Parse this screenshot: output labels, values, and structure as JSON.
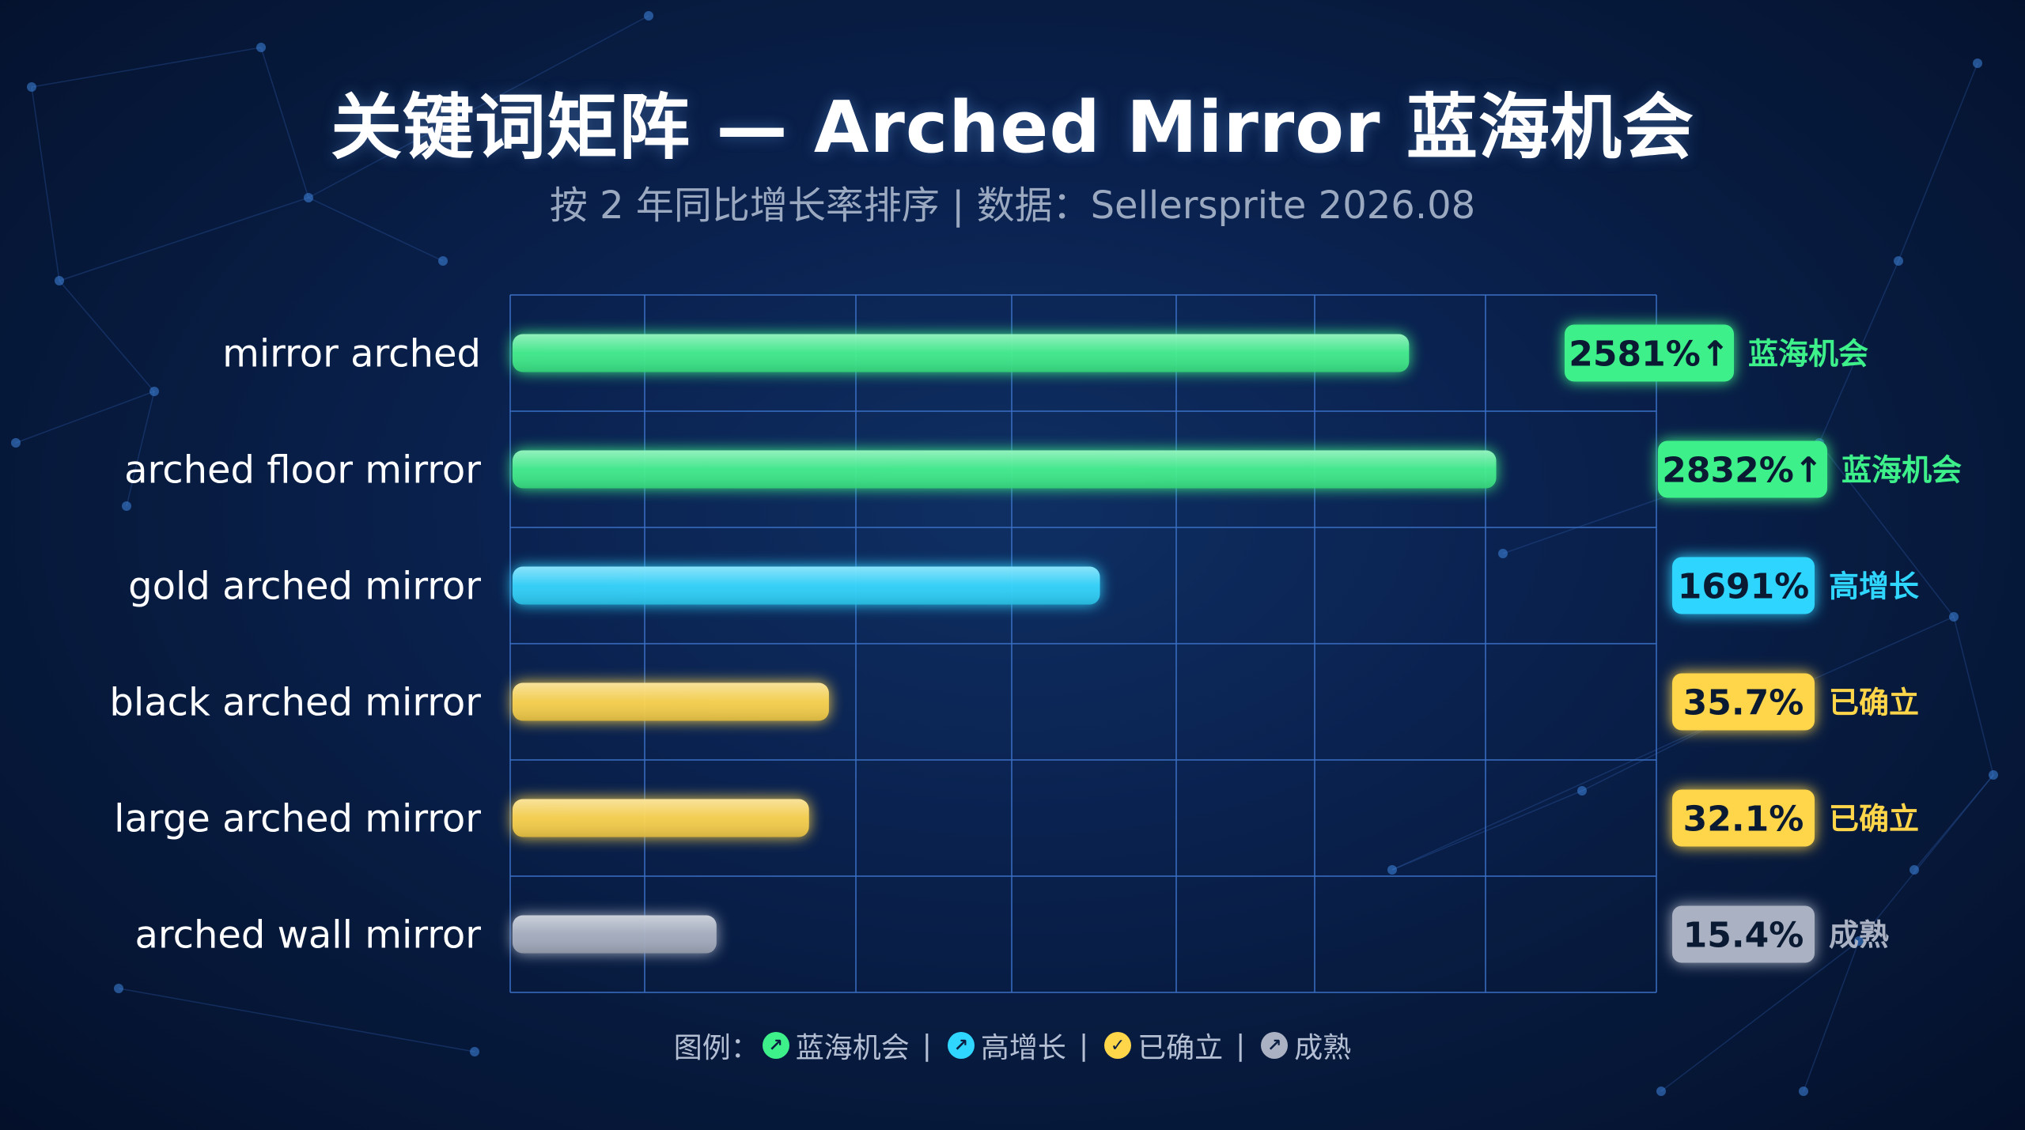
{
  "header": {
    "title": "关键词矩阵 — Arched Mirror 蓝海机会",
    "subtitle": "按 2 年同比增长率排序 | 数据：Sellersprite 2026.08"
  },
  "colors": {
    "blue_ocean": "#3df08a",
    "high_growth": "#2fd6ff",
    "established": "#ffd54a",
    "mature": "#a9b1c2",
    "grid": "#3a6fc4",
    "background": "#071a3d"
  },
  "chart_data": {
    "type": "bar",
    "orientation": "horizontal",
    "title": "",
    "xlabel": "",
    "ylabel": "",
    "xlim": [
      0,
      3300
    ],
    "grid": true,
    "categories": [
      "mirror arched",
      "arched floor mirror",
      "gold arched mirror",
      "black arched mirror",
      "large arched mirror",
      "arched wall mirror"
    ],
    "values": [
      2581,
      2832,
      1691,
      35.7,
      32.1,
      15.4
    ],
    "value_labels": [
      "2581%↑",
      "2832%↑",
      "1691%",
      "35.7%",
      "32.1%",
      "15.4%"
    ],
    "status": [
      "蓝海机会",
      "蓝海机会",
      "高增长",
      "已确立",
      "已确立",
      "成熟"
    ],
    "status_key": [
      "blue_ocean",
      "blue_ocean",
      "high_growth",
      "established",
      "established",
      "mature"
    ]
  },
  "legend": {
    "prefix": "图例：",
    "separator": "|",
    "items": [
      {
        "label": "蓝海机会",
        "icon": "arrow-up-right-icon",
        "glyph": "↗",
        "color_key": "blue_ocean"
      },
      {
        "label": "高增长",
        "icon": "arrow-up-right-icon",
        "glyph": "↗",
        "color_key": "high_growth"
      },
      {
        "label": "已确立",
        "icon": "check-icon",
        "glyph": "✓",
        "color_key": "established"
      },
      {
        "label": "成熟",
        "icon": "arrow-up-right-icon",
        "glyph": "↗",
        "color_key": "mature"
      }
    ]
  }
}
